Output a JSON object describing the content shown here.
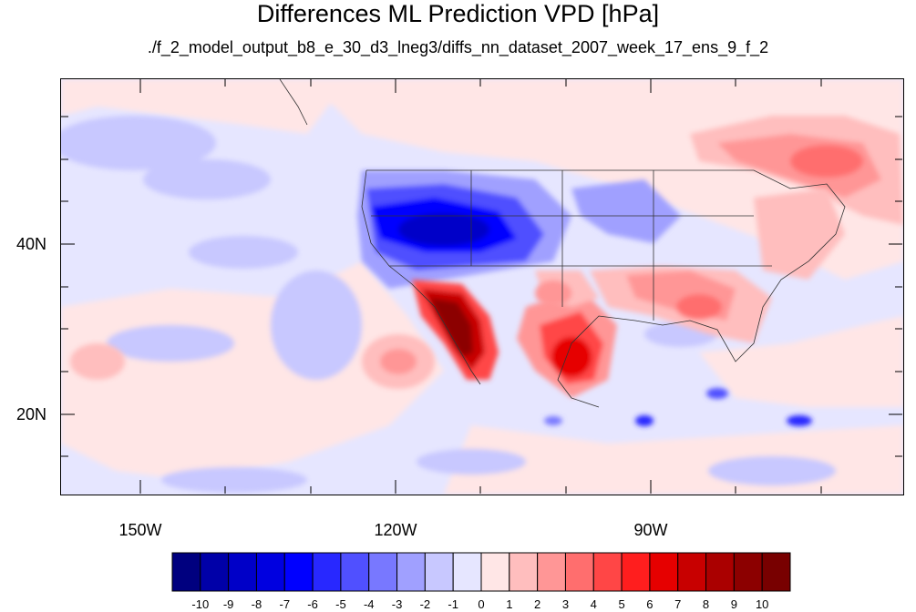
{
  "title": "Differences ML Prediction VPD [hPa]",
  "subtitle": "./f_2_model_output_b8_e_30_d3_lneg3/diffs_nn_dataset_2007_week_17_ens_9_f_2",
  "axes": {
    "lat_labels": [
      "40N",
      "20N"
    ],
    "lon_labels": [
      "150W",
      "120W",
      "90W"
    ]
  },
  "colorbar": {
    "labels": [
      "-10",
      "-9",
      "-8",
      "-7",
      "-6",
      "-5",
      "-4",
      "-3",
      "-2",
      "-1",
      "0",
      "1",
      "2",
      "3",
      "4",
      "5",
      "6",
      "7",
      "8",
      "9",
      "10"
    ],
    "colors": [
      "#00007f",
      "#0000a8",
      "#0000c8",
      "#0000e0",
      "#0000ff",
      "#2828ff",
      "#5050ff",
      "#7878ff",
      "#a0a0ff",
      "#c8c8ff",
      "#e6e6ff",
      "#ffe6e6",
      "#ffbebe",
      "#ff9696",
      "#ff6e6e",
      "#ff4646",
      "#ff1e1e",
      "#e60000",
      "#c80000",
      "#aa0000",
      "#8c0000",
      "#780000"
    ]
  },
  "map": {
    "background_color": "#e6e6ff",
    "region": "North America and eastern Pacific, approx. 10N-58N, 160W-60W",
    "features": [
      {
        "name": "southwest-us-negative",
        "description": "strong negative anomaly over Great Basin / Rockies",
        "value_range": [
          -8,
          -4
        ]
      },
      {
        "name": "baja-positive",
        "description": "strong positive anomaly along Gulf of California / Baja",
        "value_range": [
          5,
          10
        ]
      },
      {
        "name": "texas-positive",
        "description": "positive anomaly over Texas and northern Mexico",
        "value_range": [
          3,
          7
        ]
      },
      {
        "name": "southeast-positive",
        "description": "positive anomaly over southeastern US",
        "value_range": [
          2,
          5
        ]
      },
      {
        "name": "canada-positive",
        "description": "positive anomaly over eastern Canada",
        "value_range": [
          1,
          4
        ]
      },
      {
        "name": "caribbean-negative",
        "description": "small negative patches near Caribbean islands",
        "value_range": [
          -6,
          -2
        ]
      }
    ]
  }
}
